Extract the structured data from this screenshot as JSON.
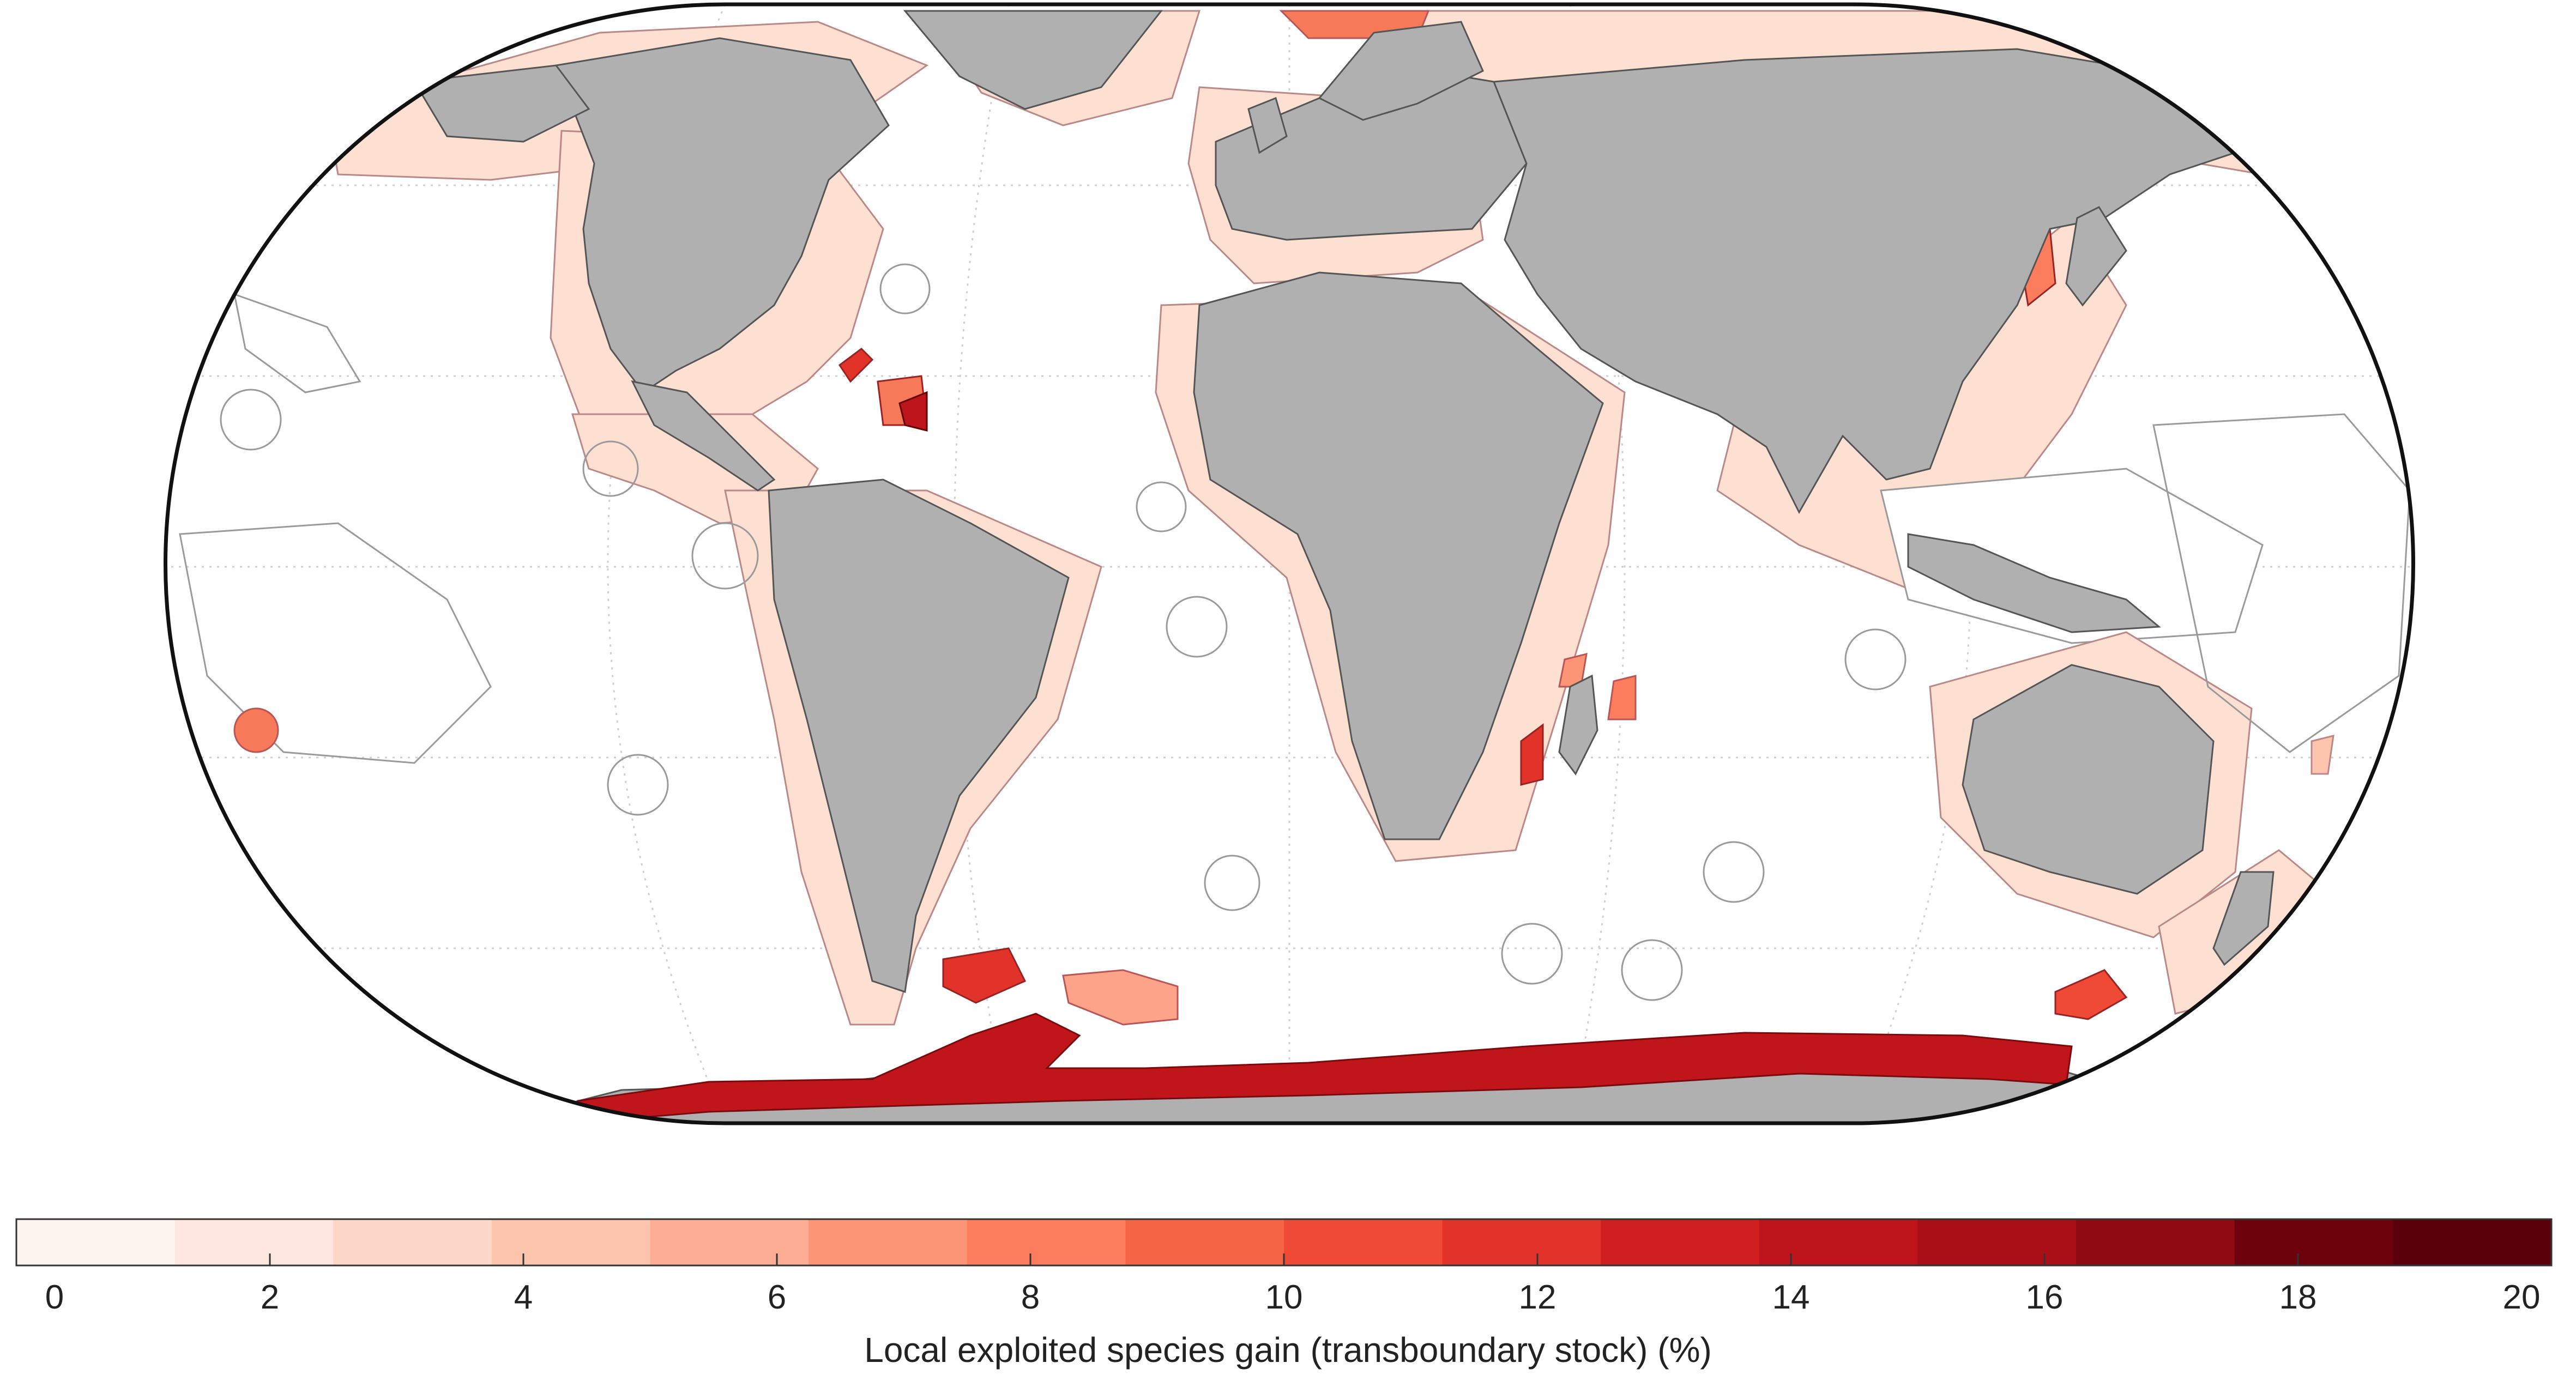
{
  "colors": {
    "land": "#b0b0b0",
    "land_border": "#555555",
    "ocean": "#ffffff",
    "eez_outline": "#9a9a9a",
    "frame": "#111111",
    "antarctic_ring": "#c0161b"
  },
  "colorbar": {
    "label": "Local exploited species gain (transboundary stock) (%)",
    "min": 0,
    "max": 20,
    "tick_labels": [
      "0",
      "2",
      "4",
      "6",
      "8",
      "10",
      "12",
      "14",
      "16",
      "18",
      "20"
    ],
    "bin_colors": [
      "#fff5f0",
      "#fee7de",
      "#fdd7c7",
      "#fcc3ad",
      "#fcad93",
      "#fc9576",
      "#fb7d5d",
      "#f76547",
      "#ef4a36",
      "#e13329",
      "#cf1f20",
      "#bd151b",
      "#aa0f18",
      "#900a13",
      "#6e020c",
      "#5a000a"
    ]
  },
  "map": {
    "projection": "Eckert IV",
    "subject": "Exclusive Economic Zones shaded by gain value"
  }
}
